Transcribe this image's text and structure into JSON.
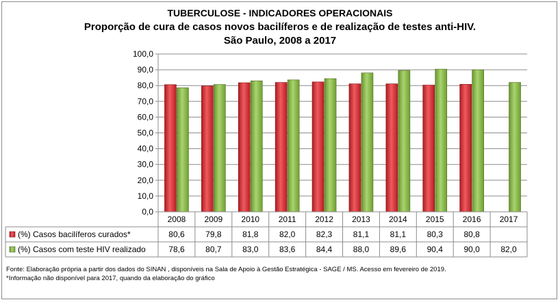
{
  "titles": {
    "line1": "TUBERCULOSE - INDICADORES OPERACIONAIS",
    "line2": "Proporção de cura de casos novos bacilíferos e de realização de testes anti-HIV.",
    "line3": "São Paulo, 2008 a 2017"
  },
  "chart_data": {
    "type": "bar",
    "categories": [
      "2008",
      "2009",
      "2010",
      "2011",
      "2012",
      "2013",
      "2014",
      "2015",
      "2016",
      "2017"
    ],
    "series": [
      {
        "name": "(%) Casos bacilíferos curados*",
        "color": "#e8242a",
        "values": [
          80.6,
          79.8,
          81.8,
          82.0,
          82.3,
          81.1,
          81.1,
          80.3,
          80.8,
          null
        ],
        "labels": [
          "80,6",
          "79,8",
          "81,8",
          "82,0",
          "82,3",
          "81,1",
          "81,1",
          "80,3",
          "80,8",
          ""
        ]
      },
      {
        "name": "(%) Casos com teste HIV realizado",
        "color": "#8cc63f",
        "values": [
          78.6,
          80.7,
          83.0,
          83.6,
          84.4,
          88.0,
          89.6,
          90.4,
          90.0,
          82.0
        ],
        "labels": [
          "78,6",
          "80,7",
          "83,0",
          "83,6",
          "84,4",
          "88,0",
          "89,6",
          "90,4",
          "90,0",
          "82,0"
        ]
      }
    ],
    "ylim": [
      0,
      100
    ],
    "yticks": [
      "0,0",
      "10,0",
      "20,0",
      "30,0",
      "40,0",
      "50,0",
      "60,0",
      "70,0",
      "80,0",
      "90,0",
      "100,0"
    ],
    "grid": true,
    "legend": "data-table"
  },
  "source": {
    "line1": "Fonte: Elaboração própria a partir dos dados do SINAN , disponíveis na Sala de Apoio à Gestão Estratégica - SAGE / MS. Acesso em fevereiro de 2019.",
    "line2": "*Informação não disponível para 2017, quando da elaboração do gráfico"
  }
}
